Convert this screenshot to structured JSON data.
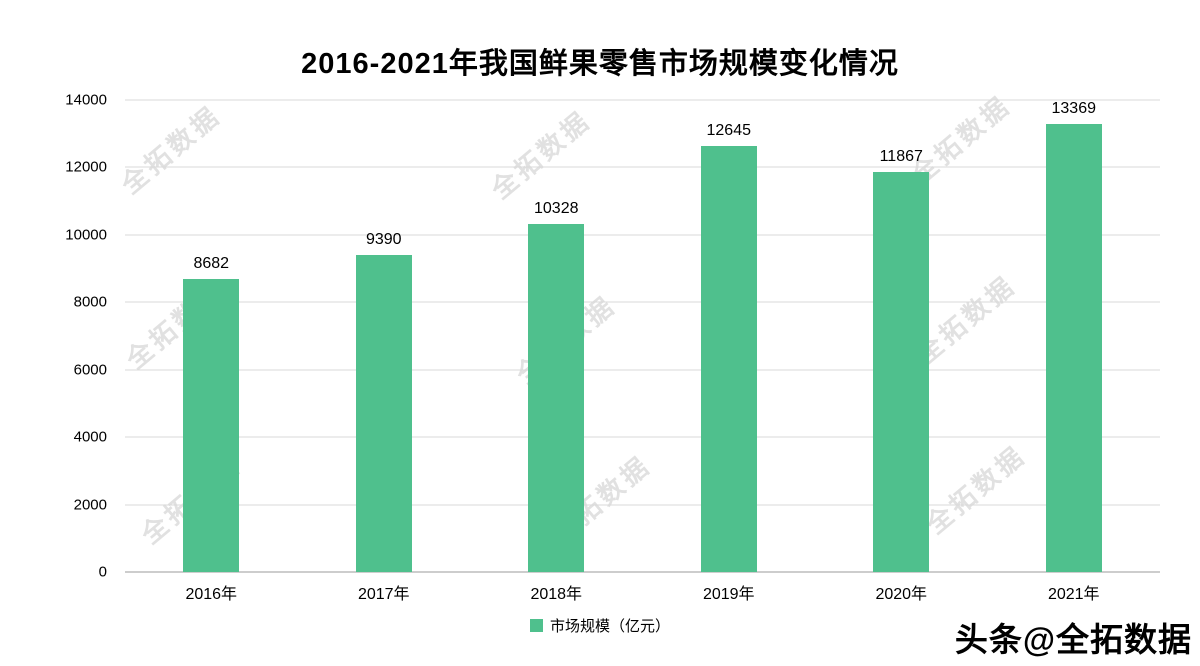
{
  "title": "2016-2021年我国鲜果零售市场规模变化情况",
  "watermark": "全拓数据",
  "branding": "头条@全拓数据",
  "legend": {
    "label": "市场规模（亿元）"
  },
  "colors": {
    "bar": "#4fc08d",
    "grid": "#d9d9d9",
    "axis_line": "#9b9b9b",
    "text": "#000000"
  },
  "chart_data": {
    "type": "bar",
    "title": "2016-2021年我国鲜果零售市场规模变化情况",
    "categories": [
      "2016年",
      "2017年",
      "2018年",
      "2019年",
      "2020年",
      "2021年"
    ],
    "values": [
      8682,
      9390,
      10328,
      12645,
      11867,
      13369
    ],
    "series_name": "市场规模（亿元）",
    "xlabel": "",
    "ylabel": "",
    "ylim": [
      0,
      14000
    ],
    "ytick_step": 2000,
    "yticks": [
      0,
      2000,
      4000,
      6000,
      8000,
      10000,
      12000,
      14000
    ],
    "grid": true,
    "legend_position": "bottom",
    "bar_color": "#4fc08d",
    "data_labels": true
  }
}
